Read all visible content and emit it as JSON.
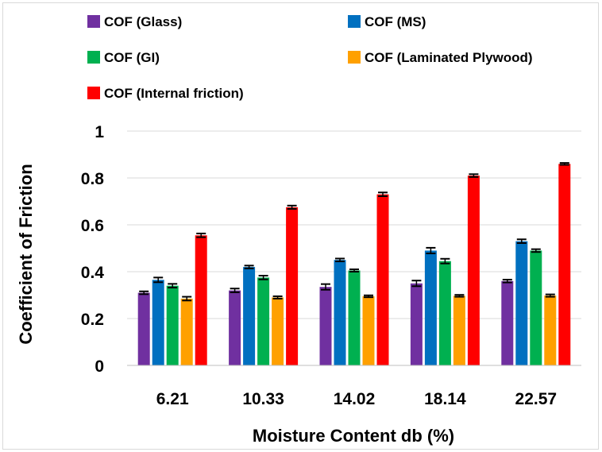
{
  "chart_data": {
    "type": "bar",
    "title": "",
    "xlabel": "Moisture Content db (%)",
    "ylabel": "Coefficient of Friction",
    "ylim": [
      0,
      1
    ],
    "yticks": [
      "0",
      "0.2",
      "0.4",
      "0.6",
      "0.8",
      "1"
    ],
    "categories": [
      "6.21",
      "10.33",
      "14.02",
      "18.14",
      "22.57"
    ],
    "grid": true,
    "legend_position": "top",
    "series": [
      {
        "name": "COF (Glass)",
        "color": "#7030a0",
        "values": [
          0.31,
          0.32,
          0.335,
          0.35,
          0.36
        ],
        "errors": [
          0.006,
          0.008,
          0.012,
          0.012,
          0.006
        ]
      },
      {
        "name": "COF (MS)",
        "color": "#0070c0",
        "values": [
          0.365,
          0.42,
          0.45,
          0.49,
          0.53
        ],
        "errors": [
          0.01,
          0.006,
          0.006,
          0.012,
          0.008
        ]
      },
      {
        "name": "COF (GI)",
        "color": "#00b050",
        "values": [
          0.34,
          0.375,
          0.405,
          0.445,
          0.49
        ],
        "errors": [
          0.008,
          0.008,
          0.005,
          0.01,
          0.006
        ]
      },
      {
        "name": "COF (Laminated Plywood)",
        "color": "#ffa000",
        "values": [
          0.285,
          0.29,
          0.295,
          0.297,
          0.298
        ],
        "errors": [
          0.008,
          0.005,
          0.004,
          0.004,
          0.005
        ]
      },
      {
        "name": "COF (Internal friction)",
        "color": "#ff0000",
        "values": [
          0.555,
          0.675,
          0.73,
          0.81,
          0.86
        ],
        "errors": [
          0.008,
          0.007,
          0.008,
          0.006,
          0.004
        ]
      }
    ]
  }
}
